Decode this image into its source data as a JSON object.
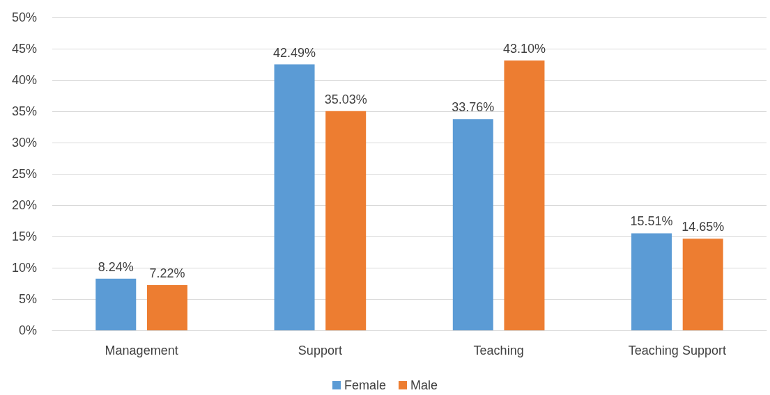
{
  "chart_data": {
    "type": "bar",
    "categories": [
      "Management",
      "Support",
      "Teaching",
      "Teaching Support"
    ],
    "series": [
      {
        "name": "Female",
        "color": "#5b9bd5",
        "values": [
          8.24,
          42.49,
          33.76,
          15.51
        ],
        "value_labels": [
          "8.24%",
          "42.49%",
          "33.76%",
          "15.51%"
        ]
      },
      {
        "name": "Male",
        "color": "#ed7d31",
        "values": [
          7.22,
          35.03,
          43.1,
          14.65
        ],
        "value_labels": [
          "7.22%",
          "35.03%",
          "43.10%",
          "14.65%"
        ]
      }
    ],
    "ylim": [
      0,
      50
    ],
    "yticks": [
      {
        "value": 0,
        "label": "0%"
      },
      {
        "value": 5,
        "label": "5%"
      },
      {
        "value": 10,
        "label": "10%"
      },
      {
        "value": 15,
        "label": "15%"
      },
      {
        "value": 20,
        "label": "20%"
      },
      {
        "value": 25,
        "label": "25%"
      },
      {
        "value": 30,
        "label": "30%"
      },
      {
        "value": 35,
        "label": "35%"
      },
      {
        "value": 40,
        "label": "40%"
      },
      {
        "value": 45,
        "label": "45%"
      },
      {
        "value": 50,
        "label": "50%"
      }
    ],
    "grid": "y",
    "legend": "bottom"
  }
}
